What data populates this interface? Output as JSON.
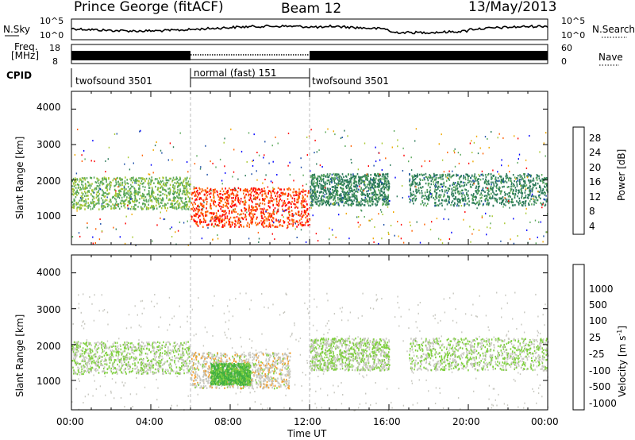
{
  "header": {
    "title": "Prince George (fitACF)",
    "beam": "Beam 12",
    "date": "13/May/2013"
  },
  "noise_panel": {
    "left_label": "N.Sky",
    "right_label": "N.Search",
    "left_ticks": [
      "10^5",
      "10^0"
    ],
    "right_ticks": [
      "10^5",
      "10^0"
    ]
  },
  "freq_panel": {
    "left_label_1": "Freq.",
    "left_label_2": "[MHz]",
    "right_label": "Nave",
    "left_ticks": [
      "18",
      "8"
    ],
    "right_ticks": [
      "60",
      "0"
    ]
  },
  "cpid": {
    "label": "CPID",
    "segments": [
      {
        "name": "twofsound 3501",
        "start_ut": 0,
        "end_ut": 6
      },
      {
        "name": "normal (fast) 151",
        "start_ut": 6,
        "end_ut": 12
      },
      {
        "name": "twofsound 3501",
        "start_ut": 12,
        "end_ut": 24
      }
    ]
  },
  "power_panel": {
    "ylabel": "Slant Range [km]",
    "yticks": [
      "4000",
      "3000",
      "2000",
      "1000"
    ],
    "colorbar_label": "Power [dB]",
    "colorbar_ticks": [
      "28",
      "24",
      "20",
      "16",
      "12",
      "8",
      "4"
    ],
    "colors": [
      "#0000ff",
      "#1e4fa8",
      "#2c7a5a",
      "#5aa85a",
      "#a8c832",
      "#f0a800",
      "#ff6000",
      "#ff0000"
    ]
  },
  "velocity_panel": {
    "ylabel": "Slant Range [km]",
    "yticks": [
      "4000",
      "3000",
      "2000",
      "1000"
    ],
    "colorbar_label": "Velocity [m s",
    "colorbar_sup": "-1",
    "colorbar_suffix": "]",
    "colorbar_ticks": [
      "1000",
      "500",
      "100",
      "25",
      "-25",
      "-100",
      "-500",
      "-1000"
    ],
    "colors": [
      "#2040c0",
      "#208070",
      "#40b040",
      "#80d040",
      "#c8c8c0",
      "#f0a030",
      "#ff6000",
      "#ff0000"
    ]
  },
  "xaxis": {
    "label": "Time UT",
    "ticks": [
      "00:00",
      "04:00",
      "08:00",
      "12:00",
      "16:00",
      "20:00",
      "00:00"
    ]
  },
  "chart_data": [
    {
      "type": "heatmap",
      "title": "Prince George (fitACF)",
      "xlabel": "Time UT",
      "ylabel": "Slant Range [km]",
      "xlim": [
        0,
        24
      ],
      "ylim": [
        180,
        4500
      ],
      "quantity": "Power [dB]",
      "zlim": [
        0,
        30
      ],
      "bands": [
        {
          "x": [
            0,
            6
          ],
          "y": [
            1200,
            2100
          ],
          "z": 14
        },
        {
          "x": [
            6,
            12
          ],
          "y": [
            700,
            1800
          ],
          "z": 26
        },
        {
          "x": [
            12,
            16
          ],
          "y": [
            1300,
            2200
          ],
          "z": 10
        },
        {
          "x": [
            17,
            24
          ],
          "y": [
            1300,
            2200
          ],
          "z": 10
        }
      ]
    },
    {
      "type": "heatmap",
      "title": "",
      "xlabel": "Time UT",
      "ylabel": "Slant Range [km]",
      "xlim": [
        0,
        24
      ],
      "ylim": [
        180,
        4500
      ],
      "quantity": "Velocity [m s^-1]",
      "zlim": [
        -1000,
        1000
      ],
      "bands": [
        {
          "x": [
            0,
            6
          ],
          "y": [
            1200,
            2100
          ],
          "z": 0
        },
        {
          "x": [
            6,
            11
          ],
          "y": [
            800,
            1800
          ],
          "z": 150
        },
        {
          "x": [
            7,
            9
          ],
          "y": [
            900,
            1500
          ],
          "z": -300
        },
        {
          "x": [
            12,
            16
          ],
          "y": [
            1300,
            2200
          ],
          "z": 0
        },
        {
          "x": [
            17,
            24
          ],
          "y": [
            1300,
            2200
          ],
          "z": 0
        }
      ]
    }
  ]
}
